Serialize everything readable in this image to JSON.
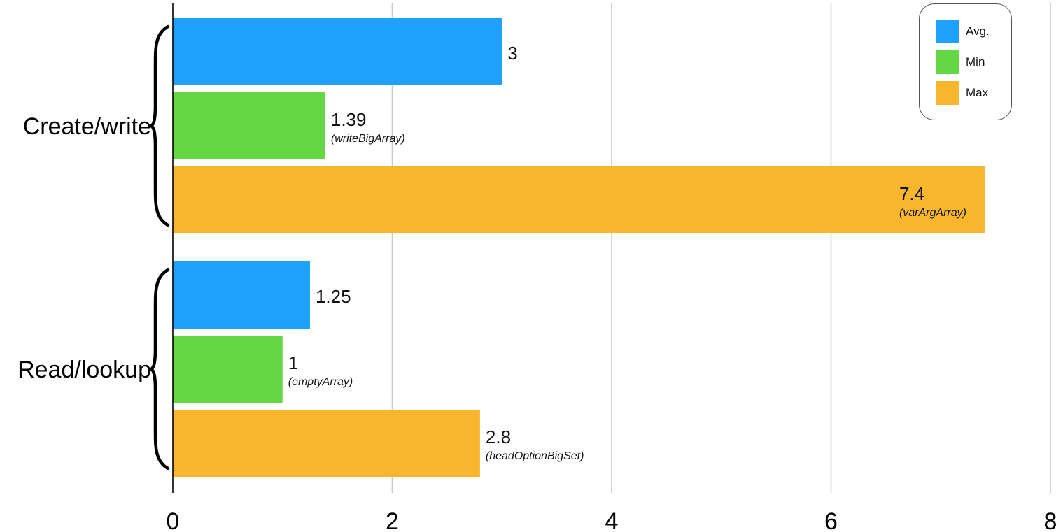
{
  "chart_data": {
    "type": "bar",
    "orientation": "horizontal",
    "categories": [
      "Create/write",
      "Read/lookup"
    ],
    "series": [
      {
        "name": "Avg.",
        "color": "#1fa2ff",
        "values": [
          3,
          1.25
        ],
        "notes": [
          "",
          ""
        ]
      },
      {
        "name": "Min",
        "color": "#63d844",
        "values": [
          1.39,
          1
        ],
        "notes": [
          "(writeBigArray)",
          "(emptyArray)"
        ]
      },
      {
        "name": "Max",
        "color": "#f7b62d",
        "values": [
          7.4,
          2.8
        ],
        "notes": [
          "(varArgArray)",
          "(headOptionBigSet)"
        ]
      }
    ],
    "data_labels": [
      [
        "3",
        "1.25"
      ],
      [
        "1.39",
        "1"
      ],
      [
        "7.4",
        "2.8"
      ]
    ],
    "xlim": [
      0,
      8
    ],
    "xticks": [
      0,
      2,
      4,
      6,
      8
    ],
    "xtick_labels": [
      "0",
      "2",
      "4",
      "6",
      "8"
    ],
    "grid": "vertical",
    "legend_position": "top-right",
    "title": "",
    "xlabel": "",
    "ylabel": ""
  }
}
